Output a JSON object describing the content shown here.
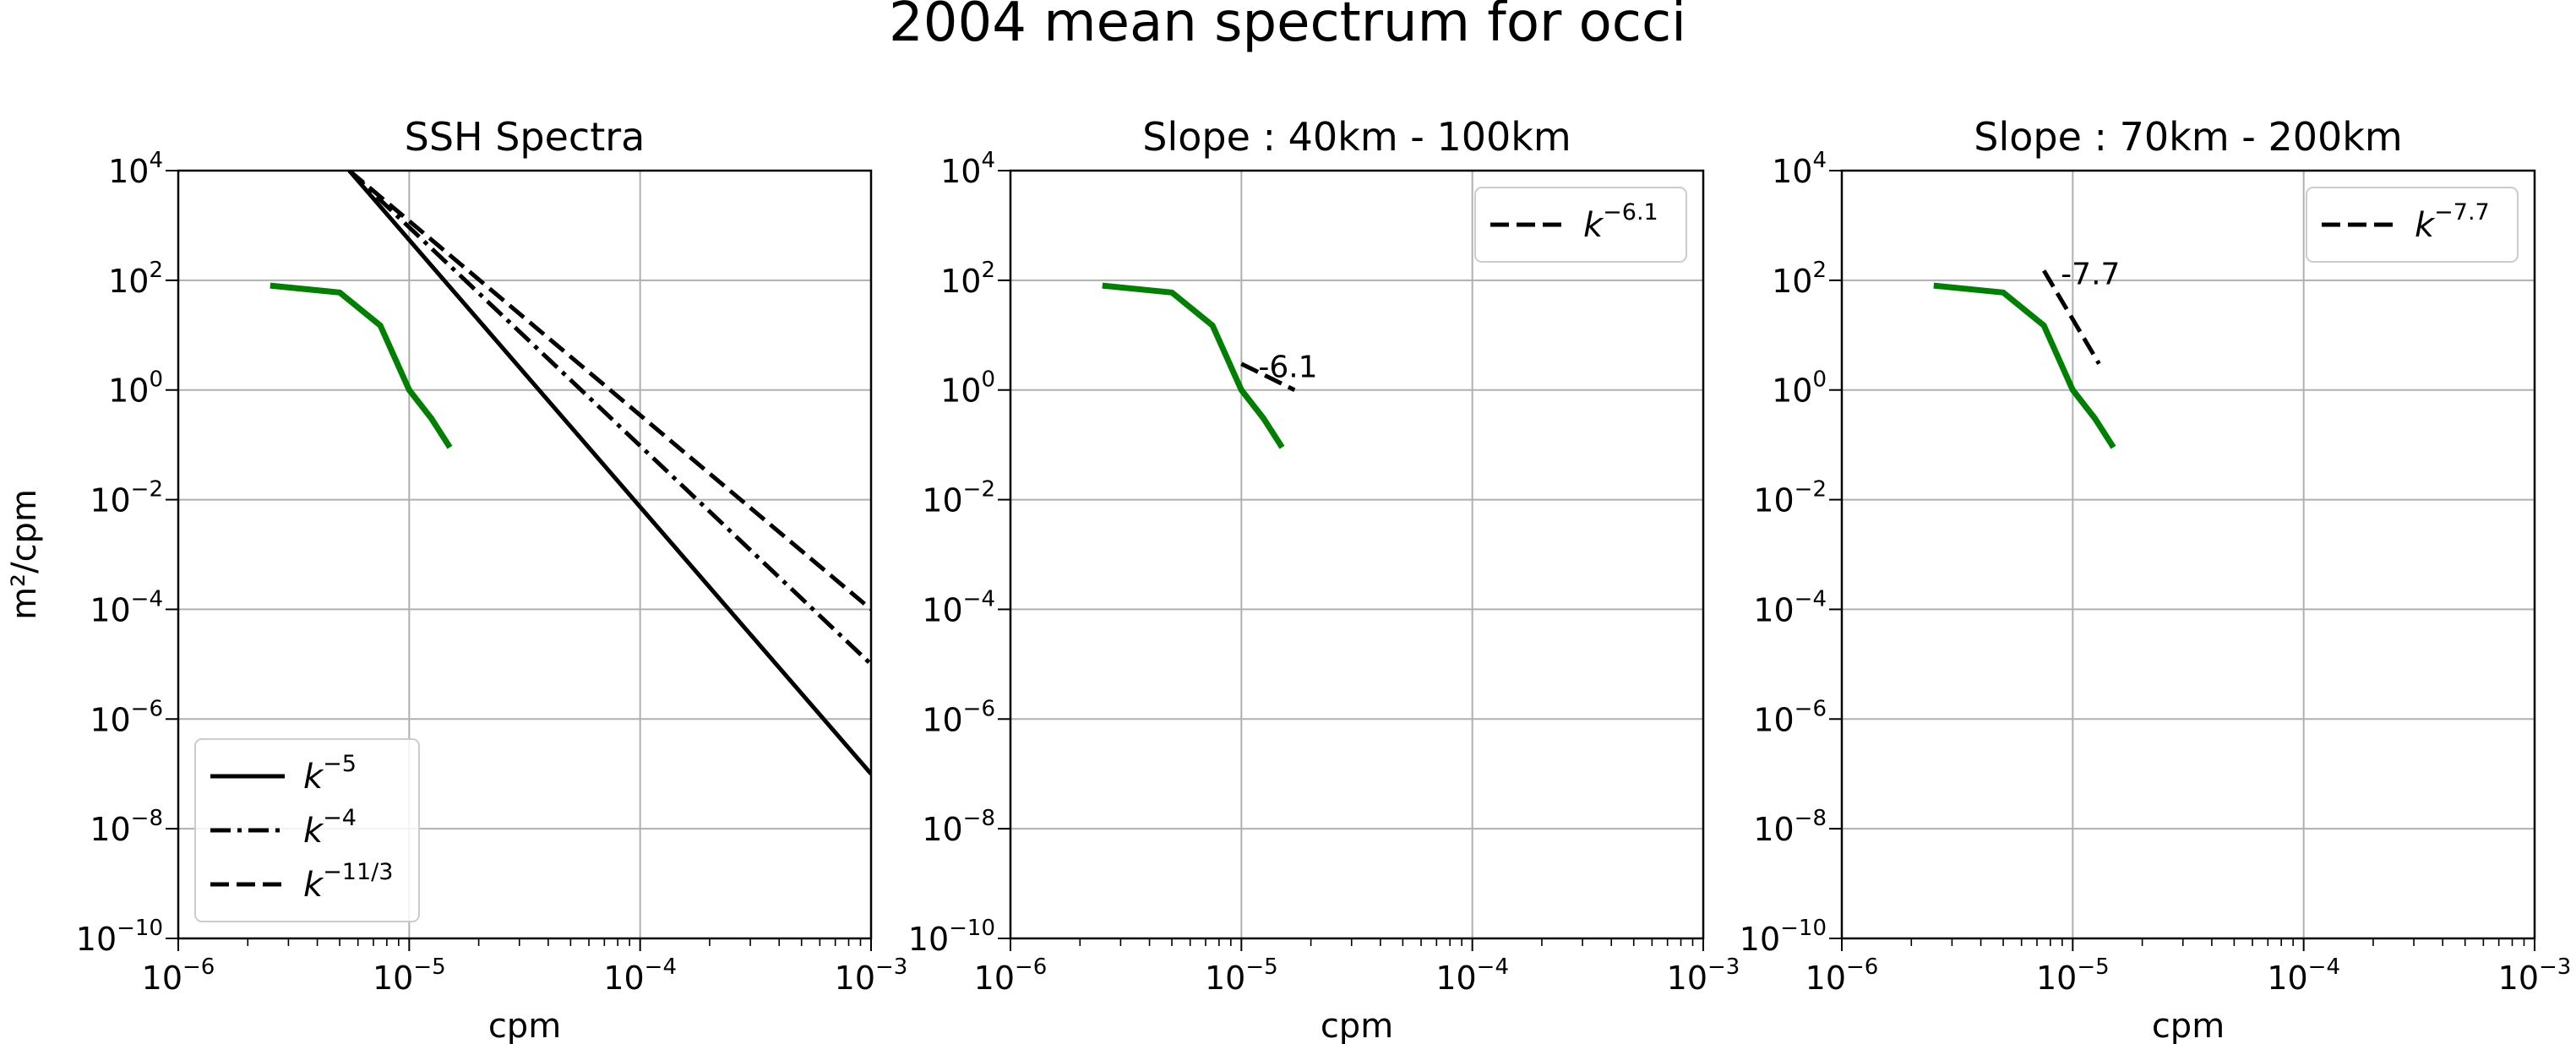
{
  "figure": {
    "suptitle": "2004 mean spectrum for occi"
  },
  "chart_data": [
    {
      "type": "line",
      "title": "SSH Spectra",
      "xlabel": "cpm",
      "ylabel": "m²/cpm",
      "xscale": "log",
      "yscale": "log",
      "xlim": [
        1e-06,
        0.001
      ],
      "ylim": [
        1e-10,
        10000.0
      ],
      "x_ticks": [
        "10^-6",
        "10^-5",
        "10^-4",
        "10^-3"
      ],
      "y_ticks": [
        "10^-10",
        "10^-8",
        "10^-6",
        "10^-4",
        "10^-2",
        "10^0",
        "10^2",
        "10^4"
      ],
      "grid": true,
      "legend_position": "lower-left",
      "series": [
        {
          "name": "",
          "color": "#008000",
          "style": "solid",
          "x": [
            2.5e-06,
            5e-06,
            7.5e-06,
            1e-05,
            1.25e-05,
            1.5e-05
          ],
          "y": [
            80,
            60,
            15,
            1,
            0.3,
            0.09
          ]
        },
        {
          "name": "k^-5",
          "color": "#000000",
          "style": "solid",
          "x": [
            5.5e-06,
            0.001
          ],
          "y": [
            10000,
            1e-07
          ]
        },
        {
          "name": "k^-4",
          "color": "#000000",
          "style": "dashdot",
          "x": [
            5.5e-06,
            0.001
          ],
          "y": [
            10000,
            1e-05
          ]
        },
        {
          "name": "k^-11/3",
          "color": "#000000",
          "style": "dashed",
          "x": [
            5.5e-06,
            0.001
          ],
          "y": [
            10000,
            0.0001
          ]
        }
      ]
    },
    {
      "type": "line",
      "title": "Slope : 40km - 100km",
      "xlabel": "cpm",
      "ylabel": "",
      "xscale": "log",
      "yscale": "log",
      "xlim": [
        1e-06,
        0.001
      ],
      "ylim": [
        1e-10,
        10000.0
      ],
      "x_ticks": [
        "10^-6",
        "10^-5",
        "10^-4",
        "10^-3"
      ],
      "y_ticks": [
        "10^-10",
        "10^-8",
        "10^-6",
        "10^-4",
        "10^-2",
        "10^0",
        "10^2",
        "10^4"
      ],
      "grid": true,
      "legend_position": "upper-right",
      "annotation": "-6.1",
      "series": [
        {
          "name": "",
          "color": "#008000",
          "style": "solid",
          "x": [
            2.5e-06,
            5e-06,
            7.5e-06,
            1e-05,
            1.25e-05,
            1.5e-05
          ],
          "y": [
            80,
            60,
            15,
            1,
            0.3,
            0.09
          ]
        },
        {
          "name": "k^-6.1",
          "color": "#000000",
          "style": "dashed",
          "x": [
            1e-05,
            1.7e-05
          ],
          "y": [
            3,
            1
          ]
        }
      ]
    },
    {
      "type": "line",
      "title": "Slope : 70km - 200km",
      "xlabel": "cpm",
      "ylabel": "",
      "xscale": "log",
      "yscale": "log",
      "xlim": [
        1e-06,
        0.001
      ],
      "ylim": [
        1e-10,
        10000.0
      ],
      "x_ticks": [
        "10^-6",
        "10^-5",
        "10^-4",
        "10^-3"
      ],
      "y_ticks": [
        "10^-10",
        "10^-8",
        "10^-6",
        "10^-4",
        "10^-2",
        "10^0",
        "10^2",
        "10^4"
      ],
      "grid": true,
      "legend_position": "upper-right",
      "annotation": "-7.7",
      "series": [
        {
          "name": "",
          "color": "#008000",
          "style": "solid",
          "x": [
            2.5e-06,
            5e-06,
            7.5e-06,
            1e-05,
            1.25e-05,
            1.5e-05
          ],
          "y": [
            80,
            60,
            15,
            1,
            0.3,
            0.09
          ]
        },
        {
          "name": "k^-7.7",
          "color": "#000000",
          "style": "dashed",
          "x": [
            7.5e-06,
            1.3e-05
          ],
          "y": [
            150,
            3
          ]
        }
      ]
    }
  ]
}
